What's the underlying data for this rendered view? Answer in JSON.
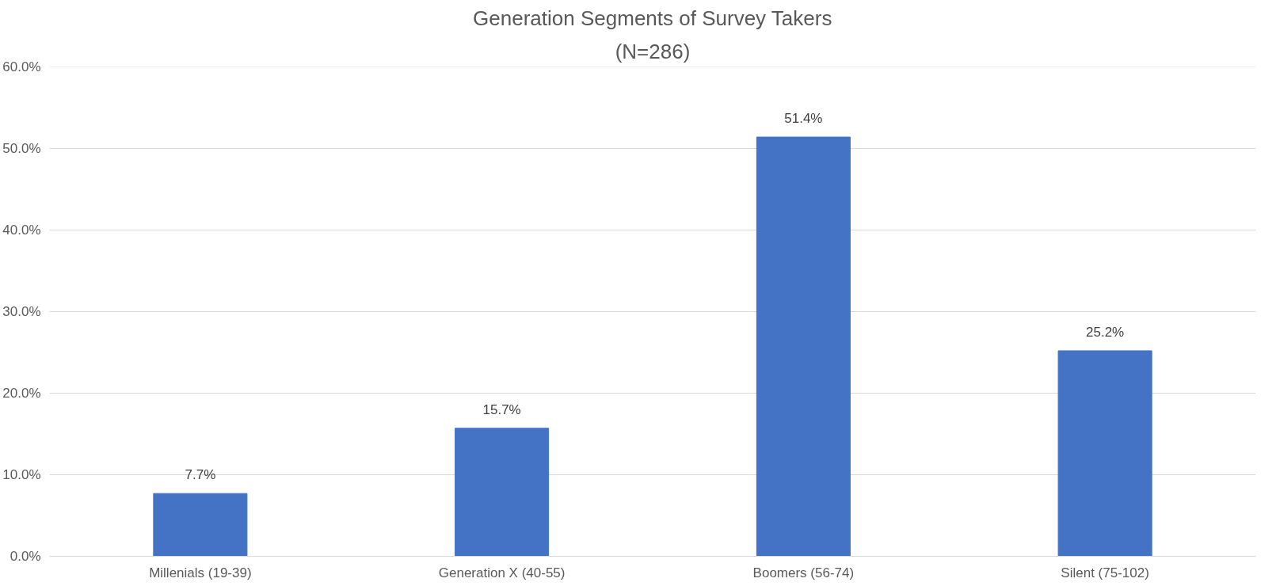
{
  "chart_data": {
    "type": "bar",
    "title": "Generation Segments of Survey Takers",
    "subtitle": "(N=286)",
    "categories": [
      "Millenials (19-39)",
      "Generation X (40-55)",
      "Boomers (56-74)",
      "Silent (75-102)"
    ],
    "values": [
      7.7,
      15.7,
      51.4,
      25.2
    ],
    "value_labels": [
      "7.7%",
      "15.7%",
      "51.4%",
      "25.2%"
    ],
    "color": "#4472c4",
    "ylim": [
      0,
      60
    ],
    "yticks": [
      {
        "value": 0,
        "label": "0.0%"
      },
      {
        "value": 10,
        "label": "10.0%"
      },
      {
        "value": 20,
        "label": "20.0%"
      },
      {
        "value": 30,
        "label": "30.0%"
      },
      {
        "value": 40,
        "label": "40.0%"
      },
      {
        "value": 50,
        "label": "50.0%"
      },
      {
        "value": 60,
        "label": "60.0%"
      }
    ],
    "grid": "y"
  }
}
